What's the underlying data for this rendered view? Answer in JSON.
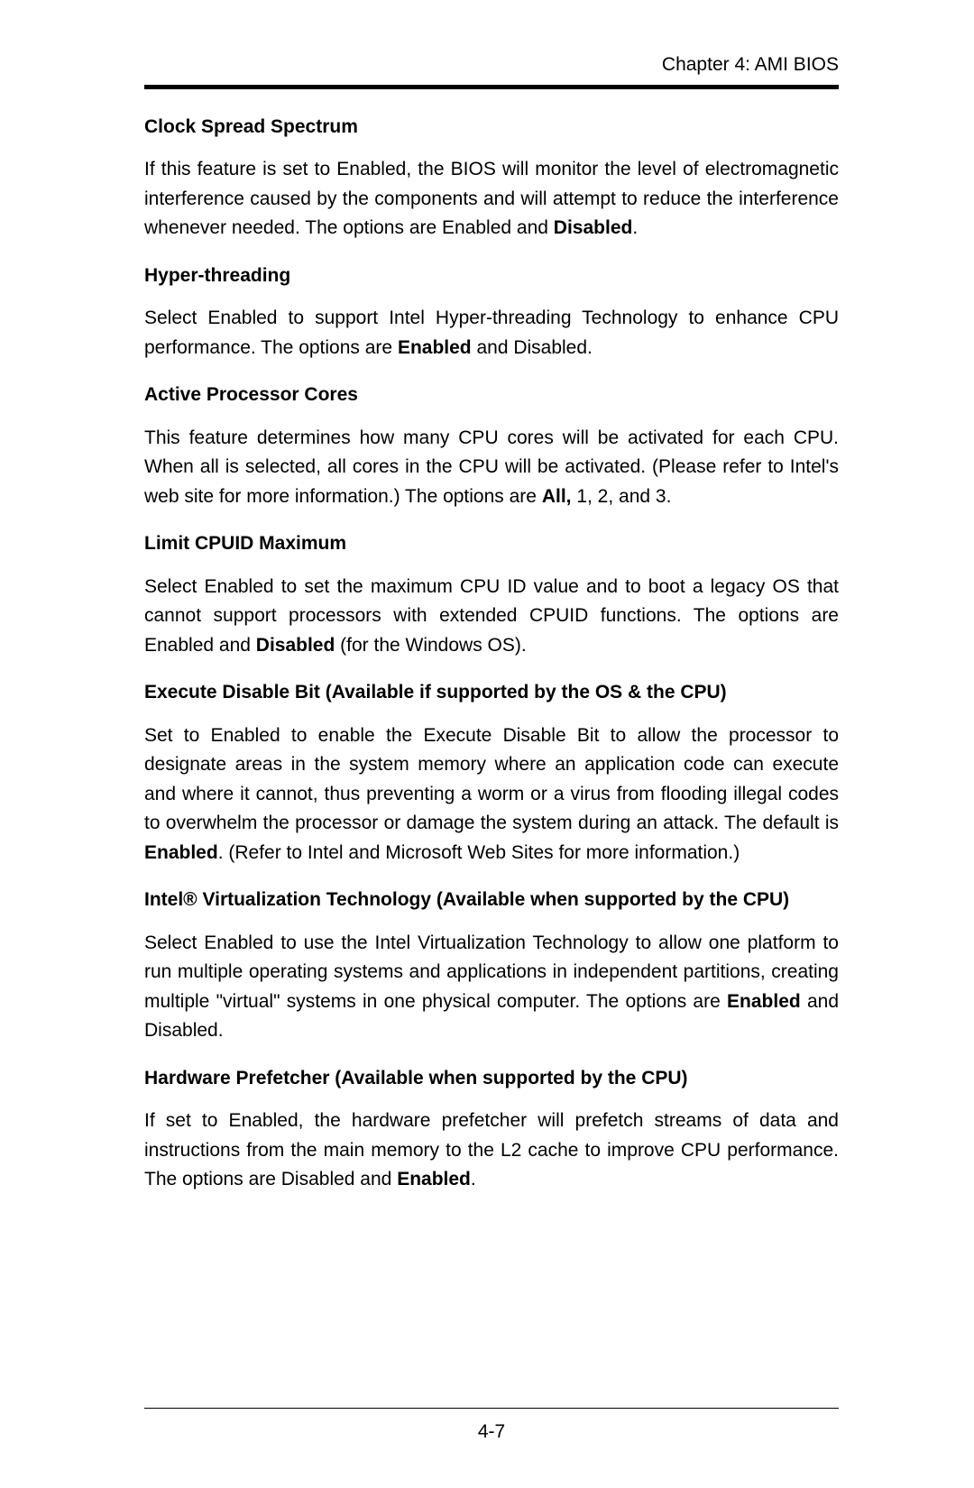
{
  "header": {
    "chapter": "Chapter 4: AMI BIOS"
  },
  "sections": [
    {
      "heading": "Clock Spread Spectrum",
      "body_html": "If this feature is set to Enabled, the BIOS will monitor the level of electromagnetic interference caused by the components and will attempt to reduce the interference whenever needed. The options are Enabled and <b>Disabled</b>."
    },
    {
      "heading": "Hyper-threading",
      "body_html": "Select Enabled to support Intel Hyper-threading Technology to enhance CPU performance. The options are <b>Enabled</b> and Disabled."
    },
    {
      "heading": "Active Processor Cores",
      "body_html": "This feature determines how many CPU cores will be activated for each CPU. When all is selected, all cores in the CPU will be activated. (Please refer to Intel's web site for more information.) The options are <b>All,</b> 1, 2, and 3."
    },
    {
      "heading": "Limit CPUID Maximum",
      "body_html": "Select Enabled to set the maximum CPU ID value and to boot a legacy OS that cannot support processors with extended CPUID functions. The options are Enabled and <b>Disabled</b> (for the Windows OS)."
    },
    {
      "heading": "Execute Disable Bit (Available if supported by the OS & the CPU)",
      "body_html": "Set to Enabled to enable the Execute Disable Bit to allow the processor to designate areas in the system memory where an application code can execute and where it cannot, thus preventing a worm or a virus from flooding illegal codes to overwhelm the processor or damage the system during an attack. The default is <b>Enabled</b>. (Refer to Intel and Microsoft Web Sites for more information.)"
    },
    {
      "heading": "Intel® Virtualization Technology (Available when supported by the CPU)",
      "body_html": "Select Enabled to use the Intel Virtualization Technology to allow one platform to run multiple operating systems and applications in independent partitions, creating multiple \"virtual\" systems in one physical computer. The options are <b>Enabled</b> and Disabled."
    },
    {
      "heading": "Hardware Prefetcher (Available when supported by the CPU)",
      "body_html": "If set to Enabled, the hardware prefetcher will prefetch streams of data and instructions from the main memory to the L2 cache to improve CPU performance. The options are Disabled and <b>Enabled</b>."
    }
  ],
  "footer": {
    "page_number": "4-7"
  }
}
